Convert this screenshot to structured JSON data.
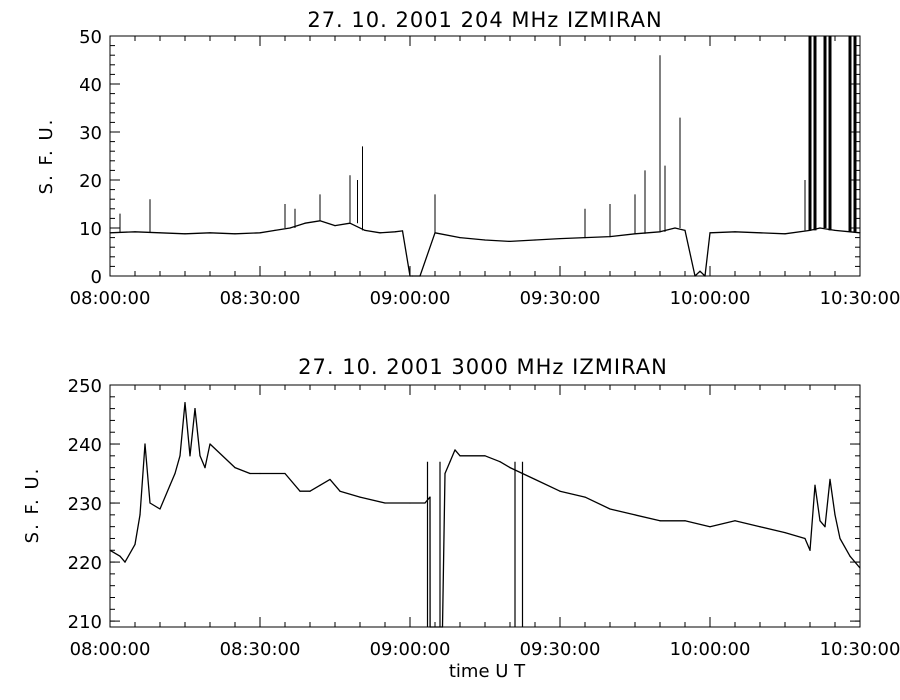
{
  "chart_data": [
    {
      "type": "line",
      "title": "27.  10.  2001    204 MHz    IZMIRAN",
      "ylabel": "S. F. U.",
      "xlabel": "",
      "xlim": [
        "08:00:00",
        "10:30:00"
      ],
      "ylim": [
        0,
        50
      ],
      "x_ticks": [
        "08:00:00",
        "08:30:00",
        "09:00:00",
        "09:30:00",
        "10:00:00",
        "10:30:00"
      ],
      "y_ticks": [
        "0",
        "10",
        "20",
        "30",
        "40",
        "50"
      ],
      "grid": false,
      "series": [
        {
          "x": [
            "08:00:00",
            "08:05:00",
            "08:10:00",
            "08:15:00",
            "08:20:00",
            "08:25:00",
            "08:30:00",
            "08:33:00",
            "08:36:00",
            "08:39:00",
            "08:42:00",
            "08:45:00",
            "08:48:00",
            "08:51:00",
            "08:54:00",
            "08:57:00",
            "08:58:30",
            "09:00:00",
            "09:00:30",
            "09:02:00",
            "09:05:00",
            "09:10:00",
            "09:15:00",
            "09:20:00",
            "09:25:00",
            "09:30:00",
            "09:35:00",
            "09:40:00",
            "09:45:00",
            "09:50:00",
            "09:53:00",
            "09:55:00",
            "09:57:00",
            "09:58:00",
            "09:59:00",
            "10:00:00",
            "10:05:00",
            "10:10:00",
            "10:15:00",
            "10:20:00",
            "10:22:00",
            "10:25:00",
            "10:28:00",
            "10:30:00"
          ],
          "values": [
            9,
            9.2,
            9,
            8.8,
            9,
            8.8,
            9,
            9.5,
            10,
            11,
            11.5,
            10.5,
            11,
            9.5,
            9,
            9.2,
            9.4,
            0,
            0,
            0,
            9,
            8,
            7.5,
            7.2,
            7.5,
            7.8,
            8,
            8.2,
            8.8,
            9.2,
            10,
            9.5,
            0,
            1,
            0,
            9,
            9.2,
            9,
            8.8,
            9.5,
            10,
            9.5,
            9.2,
            9
          ]
        }
      ],
      "spikes": {
        "x": [
          "08:02:00",
          "08:08:00",
          "08:35:00",
          "08:37:00",
          "08:42:00",
          "08:48:00",
          "08:49:30",
          "08:50:30",
          "09:05:00",
          "09:35:00",
          "09:40:00",
          "09:45:00",
          "09:47:00",
          "09:50:00",
          "09:51:00",
          "09:54:00",
          "10:19:00",
          "10:20:00",
          "10:21:00",
          "10:23:00",
          "10:24:00",
          "10:28:00",
          "10:29:00"
        ],
        "values": [
          13,
          16,
          15,
          14,
          17,
          21,
          20,
          27,
          17,
          14,
          15,
          17,
          22,
          46,
          23,
          33,
          20,
          50,
          50,
          50,
          50,
          50,
          50
        ]
      }
    },
    {
      "type": "line",
      "title": "27.  10.  2001    3000 MHz    IZMIRAN",
      "ylabel": "S. F. U.",
      "xlabel": "time   U T",
      "xlim": [
        "08:00:00",
        "10:30:00"
      ],
      "ylim": [
        209,
        250
      ],
      "x_ticks": [
        "08:00:00",
        "08:30:00",
        "09:00:00",
        "09:30:00",
        "10:00:00",
        "10:30:00"
      ],
      "y_ticks": [
        "210",
        "220",
        "230",
        "240",
        "250"
      ],
      "grid": false,
      "series": [
        {
          "x": [
            "08:00:00",
            "08:02:00",
            "08:03:00",
            "08:05:00",
            "08:06:00",
            "08:07:00",
            "08:08:00",
            "08:10:00",
            "08:12:00",
            "08:13:00",
            "08:14:00",
            "08:15:00",
            "08:16:00",
            "08:17:00",
            "08:18:00",
            "08:19:00",
            "08:20:00",
            "08:25:00",
            "08:28:00",
            "08:30:00",
            "08:35:00",
            "08:38:00",
            "08:40:00",
            "08:42:00",
            "08:44:00",
            "08:46:00",
            "08:50:00",
            "08:55:00",
            "09:00:00",
            "09:03:00",
            "09:04:00",
            "09:04:01",
            "09:06:30",
            "09:07:00",
            "09:08:00",
            "09:09:00",
            "09:10:00",
            "09:15:00",
            "09:18:00",
            "09:20:00",
            "09:25:00",
            "09:30:00",
            "09:35:00",
            "09:40:00",
            "09:45:00",
            "09:50:00",
            "09:55:00",
            "10:00:00",
            "10:05:00",
            "10:10:00",
            "10:15:00",
            "10:19:00",
            "10:20:00",
            "10:21:00",
            "10:22:00",
            "10:23:00",
            "10:24:00",
            "10:25:00",
            "10:26:00",
            "10:28:00",
            "10:30:00"
          ],
          "values": [
            222,
            221,
            220,
            223,
            228,
            240,
            230,
            229,
            233,
            235,
            238,
            247,
            238,
            246,
            238,
            236,
            240,
            236,
            235,
            235,
            235,
            232,
            232,
            233,
            234,
            232,
            231,
            230,
            230,
            230,
            231,
            209,
            209,
            235,
            237,
            239,
            238,
            238,
            237,
            236,
            234,
            232,
            231,
            229,
            228,
            227,
            227,
            226,
            227,
            226,
            225,
            224,
            222,
            233,
            227,
            226,
            234,
            228,
            224,
            221,
            219
          ]
        }
      ],
      "drops": {
        "x": [
          "09:03:30",
          "09:06:00",
          "09:21:00",
          "09:22:30"
        ],
        "values": [
          209,
          209,
          209,
          209
        ]
      }
    }
  ]
}
